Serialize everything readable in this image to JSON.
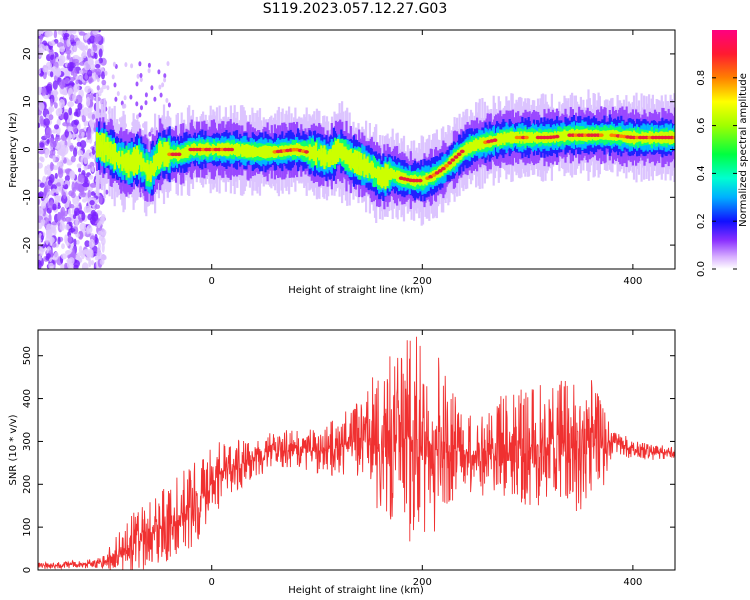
{
  "page": {
    "title": "S119.2023.057.12.27.G03"
  },
  "colors": {
    "snr_line": "#f03030",
    "ridge_core": "#e8213a",
    "colormap": [
      "#f0d8ff",
      "#9a40ff",
      "#1010ff",
      "#00c0ff",
      "#00ff60",
      "#a0ff00",
      "#ffff00",
      "#ff8000",
      "#ff0040",
      "#ff0080"
    ]
  },
  "chart_data": [
    {
      "type": "heatmap",
      "title": "S119.2023.057.12.27.G03",
      "xlabel": "Height of straight line (km)",
      "ylabel": "Frequency (Hz)",
      "xlim": [
        -165,
        440
      ],
      "ylim": [
        -25,
        25
      ],
      "xticks": [
        0,
        200,
        400
      ],
      "xtick_labels": [
        "0",
        "200",
        "400"
      ],
      "yticks": [
        -20,
        -10,
        0,
        10,
        20
      ],
      "ytick_labels": [
        "-20",
        "-10",
        "0",
        "10",
        "20"
      ],
      "ridge": {
        "x": [
          -110,
          -100,
          -90,
          -80,
          -70,
          -60,
          -50,
          -40,
          -30,
          -20,
          -10,
          0,
          20,
          40,
          60,
          80,
          100,
          110,
          120,
          130,
          140,
          150,
          160,
          170,
          180,
          190,
          200,
          210,
          220,
          230,
          240,
          250,
          260,
          280,
          300,
          320,
          340,
          360,
          380,
          400,
          420,
          440
        ],
        "y": [
          1,
          0,
          -2,
          -3,
          -2,
          -5,
          -1,
          -1,
          -1,
          0,
          0,
          0,
          0,
          -0.5,
          -0.5,
          0,
          -1,
          -2,
          0,
          -2,
          -3,
          -4,
          -6,
          -5,
          -6,
          -6.5,
          -6.5,
          -5.5,
          -4,
          -2,
          0,
          1,
          1.5,
          2.5,
          2.5,
          2.5,
          3,
          3,
          3,
          2.5,
          2.5,
          2.5
        ]
      },
      "noise_region": {
        "x_range": [
          -165,
          -110
        ],
        "y_range": [
          -25,
          25
        ]
      },
      "colorbar": {
        "label": "Normalized spectral amplitude",
        "range": [
          0,
          1
        ],
        "ticks": [
          0.0,
          0.2,
          0.4,
          0.6,
          0.8
        ],
        "tick_labels": [
          "0.0",
          "0.2",
          "0.4",
          "0.6",
          "0.8"
        ]
      }
    },
    {
      "type": "line",
      "xlabel": "Height of straight line (km)",
      "ylabel": "SNR (10 * v/v)",
      "xlim": [
        -165,
        440
      ],
      "ylim": [
        0,
        560
      ],
      "xticks": [
        0,
        200,
        400
      ],
      "xtick_labels": [
        "0",
        "200",
        "400"
      ],
      "yticks": [
        0,
        100,
        200,
        300,
        400,
        500
      ],
      "ytick_labels": [
        "0",
        "100",
        "200",
        "300",
        "400",
        "500"
      ],
      "envelope": {
        "x": [
          -165,
          -140,
          -110,
          -100,
          -80,
          -60,
          -40,
          -20,
          0,
          10,
          20,
          30,
          40,
          60,
          80,
          100,
          120,
          140,
          160,
          180,
          200,
          210,
          220,
          240,
          260,
          280,
          300,
          320,
          340,
          360,
          370,
          380,
          400,
          420,
          440
        ],
        "mean": [
          10,
          12,
          15,
          22,
          50,
          80,
          110,
          150,
          200,
          230,
          240,
          250,
          270,
          280,
          285,
          275,
          290,
          305,
          300,
          300,
          305,
          300,
          300,
          270,
          280,
          290,
          290,
          295,
          290,
          285,
          285,
          300,
          280,
          275,
          275
        ],
        "amp": [
          4,
          5,
          6,
          12,
          40,
          45,
          50,
          55,
          50,
          40,
          35,
          30,
          30,
          25,
          25,
          30,
          40,
          55,
          100,
          130,
          140,
          140,
          100,
          50,
          60,
          70,
          80,
          80,
          90,
          90,
          60,
          20,
          12,
          10,
          8
        ]
      }
    }
  ],
  "colorbar_ticks": [
    "0.0",
    "0.2",
    "0.4",
    "0.6",
    "0.8"
  ]
}
